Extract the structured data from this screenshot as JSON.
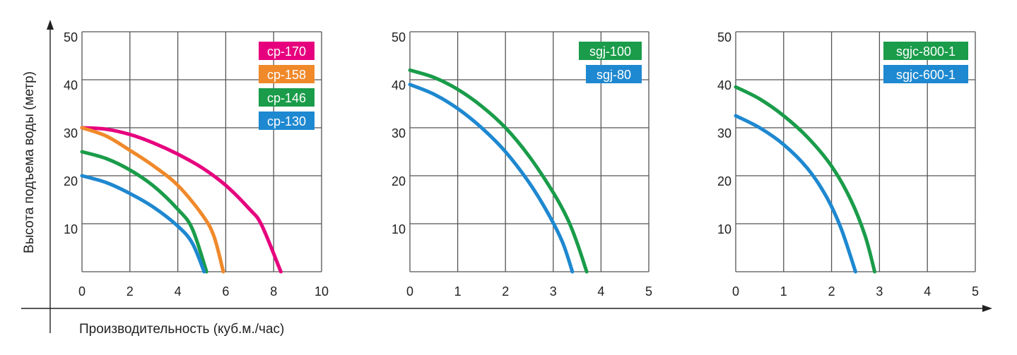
{
  "labels": {
    "ylabel": "Высота подъема воды (метр)",
    "xlabel": "Производительность (куб.м./час)"
  },
  "colors": {
    "grid": "#555555",
    "axis": "#222222",
    "text": "#222222",
    "magenta": "#e6007e",
    "orange": "#f0892a",
    "green": "#1a9c4a",
    "blue": "#1e88d0"
  },
  "chart_data": [
    {
      "type": "line",
      "xlim": [
        0,
        10
      ],
      "ylim": [
        0,
        50
      ],
      "xticks": [
        0,
        2,
        4,
        6,
        8,
        10
      ],
      "yticks": [
        10,
        20,
        30,
        40,
        50
      ],
      "grid": true,
      "legend_placement": "top-right",
      "series": [
        {
          "name": "cp-170",
          "color": "#e6007e",
          "x": [
            0,
            1,
            2,
            3,
            4,
            5,
            6,
            7,
            7.5,
            8.3
          ],
          "y": [
            30,
            29.7,
            28.6,
            26.8,
            24.5,
            21.7,
            18,
            13,
            9.7,
            0
          ]
        },
        {
          "name": "cp-158",
          "color": "#f0892a",
          "x": [
            0,
            1,
            2,
            3,
            4,
            5,
            5.5,
            5.9
          ],
          "y": [
            30,
            28.3,
            25.3,
            22,
            18,
            12,
            7.5,
            0
          ]
        },
        {
          "name": "cp-146",
          "color": "#1a9c4a",
          "x": [
            0,
            1,
            2,
            3,
            4,
            4.6,
            5.2
          ],
          "y": [
            25,
            23.6,
            21.2,
            17.8,
            13,
            9,
            0
          ]
        },
        {
          "name": "cp-130",
          "color": "#1e88d0",
          "x": [
            0,
            1,
            2,
            3,
            4,
            4.6,
            5.1
          ],
          "y": [
            20,
            18.6,
            16.3,
            13.4,
            9.5,
            6,
            0
          ]
        }
      ]
    },
    {
      "type": "line",
      "xlim": [
        0,
        5
      ],
      "ylim": [
        0,
        50
      ],
      "xticks": [
        0,
        1,
        2,
        3,
        4,
        5
      ],
      "yticks": [
        10,
        20,
        30,
        40,
        50
      ],
      "grid": true,
      "legend_placement": "top-right",
      "series": [
        {
          "name": "sgj-100",
          "color": "#1a9c4a",
          "x": [
            0,
            0.5,
            1,
            1.5,
            2,
            2.5,
            3,
            3.3,
            3.5,
            3.7
          ],
          "y": [
            42,
            40.5,
            38,
            34.5,
            30,
            24,
            16.5,
            11,
            6,
            0
          ]
        },
        {
          "name": "sgj-80",
          "color": "#1e88d0",
          "x": [
            0,
            0.5,
            1,
            1.5,
            2,
            2.5,
            2.9,
            3.2,
            3.4
          ],
          "y": [
            39,
            37,
            34,
            30,
            25,
            18.5,
            12,
            6,
            0
          ]
        }
      ]
    },
    {
      "type": "line",
      "xlim": [
        0,
        5
      ],
      "ylim": [
        0,
        50
      ],
      "xticks": [
        0,
        1,
        2,
        3,
        4,
        5
      ],
      "yticks": [
        10,
        20,
        30,
        40,
        50
      ],
      "grid": true,
      "legend_placement": "top-right",
      "series": [
        {
          "name": "sgjc-800-1",
          "color": "#1a9c4a",
          "x": [
            0,
            0.5,
            1,
            1.5,
            2,
            2.4,
            2.7,
            2.9
          ],
          "y": [
            38.5,
            36,
            32.5,
            28,
            22,
            15,
            7.5,
            0
          ]
        },
        {
          "name": "sgjc-600-1",
          "color": "#1e88d0",
          "x": [
            0,
            0.5,
            1,
            1.5,
            1.9,
            2.2,
            2.5
          ],
          "y": [
            32.5,
            30,
            26.5,
            21.5,
            15.5,
            9,
            0
          ]
        }
      ]
    }
  ]
}
